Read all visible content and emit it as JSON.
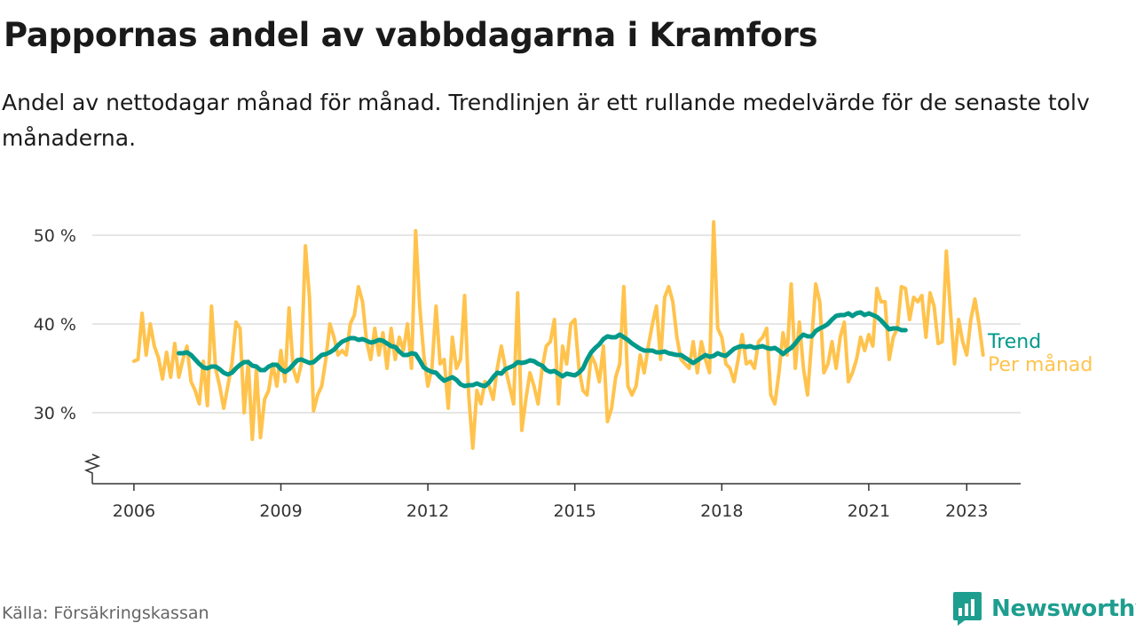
{
  "header": {
    "title": "Pappornas andel av vabbdagarna i Kramfors",
    "subtitle": "Andel av nettodagar månad för månad. Trendlinjen är ett rullande medelvärde för de senaste tolv månaderna."
  },
  "footer": {
    "source": "Källa: Försäkringskassan",
    "brand": "Newsworthy"
  },
  "colors": {
    "monthly": "#ffc34d",
    "trend": "#00998a",
    "grid": "#dddddd",
    "axis": "#333333",
    "brand": "#1e9e8f"
  },
  "icons": {
    "brand": "bar-chart-bubble-icon",
    "axis_break": "zigzag-axis-break-icon"
  },
  "chart_data": {
    "type": "line",
    "x_unit": "year (decimal)",
    "y_unit": "%",
    "ylim": [
      22,
      51
    ],
    "xlim": [
      2005.15,
      2024.1
    ],
    "y_ticks": [
      {
        "value": 30,
        "label": "30 %"
      },
      {
        "value": 40,
        "label": "40 %"
      },
      {
        "value": 50,
        "label": "50 %"
      }
    ],
    "x_ticks": [
      {
        "value": 2006,
        "label": "2006"
      },
      {
        "value": 2009,
        "label": "2009"
      },
      {
        "value": 2012,
        "label": "2012"
      },
      {
        "value": 2015,
        "label": "2015"
      },
      {
        "value": 2018,
        "label": "2018"
      },
      {
        "value": 2021,
        "label": "2021"
      },
      {
        "value": 2023,
        "label": "2023"
      }
    ],
    "grid": "horizontal",
    "legend": "right-end labels",
    "series": [
      {
        "name": "Per månad",
        "color_key": "monthly",
        "start_year": 2006.0,
        "values": [
          35.8,
          36.0,
          41.2,
          36.5,
          40.0,
          37.5,
          36.2,
          33.8,
          36.8,
          34.0,
          37.8,
          34.0,
          36.0,
          37.5,
          33.5,
          32.5,
          31.0,
          35.8,
          30.8,
          42.0,
          35.0,
          33.0,
          30.5,
          33.0,
          35.5,
          40.2,
          39.5,
          30.0,
          35.8,
          27.0,
          35.0,
          27.2,
          31.5,
          32.5,
          35.5,
          33.0,
          37.0,
          33.5,
          41.8,
          35.0,
          33.5,
          35.5,
          48.8,
          43.0,
          30.2,
          32.0,
          33.0,
          36.0,
          40.0,
          38.5,
          36.5,
          37.0,
          36.5,
          40.0,
          41.0,
          44.2,
          42.5,
          38.0,
          36.0,
          39.5,
          36.5,
          39.0,
          35.0,
          39.5,
          36.0,
          38.5,
          37.0,
          40.0,
          35.0,
          50.5,
          42.0,
          36.5,
          33.0,
          35.0,
          42.0,
          35.5,
          36.0,
          30.5,
          38.5,
          35.0,
          36.0,
          43.2,
          32.0,
          26.0,
          32.5,
          31.0,
          33.5,
          33.0,
          31.5,
          35.0,
          37.5,
          35.0,
          33.0,
          31.0,
          43.5,
          28.0,
          31.5,
          34.5,
          33.0,
          31.0,
          35.0,
          37.5,
          38.0,
          40.5,
          31.0,
          37.5,
          35.5,
          40.0,
          40.5,
          35.0,
          32.5,
          32.0,
          36.5,
          35.5,
          33.5,
          37.5,
          29.0,
          30.5,
          34.0,
          35.5,
          44.2,
          33.0,
          32.0,
          33.0,
          36.5,
          34.5,
          37.5,
          40.0,
          42.0,
          36.0,
          43.0,
          44.2,
          42.5,
          38.5,
          36.0,
          35.5,
          35.0,
          38.0,
          34.5,
          38.0,
          36.0,
          34.5,
          51.5,
          39.5,
          38.5,
          35.5,
          35.0,
          33.5,
          36.0,
          38.8,
          35.5,
          35.8,
          35.0,
          38.0,
          38.5,
          39.5,
          32.0,
          31.0,
          34.5,
          39.0,
          36.5,
          44.5,
          35.0,
          40.2,
          35.0,
          32.0,
          38.0,
          44.5,
          42.5,
          34.5,
          35.5,
          38.0,
          35.0,
          38.5,
          40.2,
          33.5,
          34.5,
          36.0,
          38.5,
          37.0,
          38.8,
          37.5,
          44.0,
          42.5,
          42.5,
          36.0,
          38.5,
          39.5,
          44.2,
          44.0,
          40.5,
          43.0,
          42.5,
          43.2,
          38.5,
          43.5,
          42.0,
          37.8,
          38.0,
          48.2,
          41.5,
          35.5,
          40.5,
          38.0,
          36.5,
          40.5,
          42.8,
          40.0,
          36.5
        ]
      },
      {
        "name": "Trend",
        "color_key": "trend",
        "start_year": 2006.917,
        "values": [
          36.7,
          36.7,
          36.8,
          36.5,
          36.0,
          35.5,
          35.1,
          35.0,
          35.2,
          35.2,
          34.9,
          34.5,
          34.3,
          34.5,
          35.0,
          35.4,
          35.7,
          35.7,
          35.3,
          35.2,
          34.8,
          34.8,
          35.2,
          35.4,
          35.4,
          34.9,
          34.6,
          34.9,
          35.4,
          35.9,
          36.0,
          35.8,
          35.6,
          35.7,
          36.1,
          36.5,
          36.6,
          36.8,
          37.1,
          37.6,
          38.0,
          38.2,
          38.4,
          38.4,
          38.2,
          38.3,
          38.1,
          37.9,
          38.0,
          38.2,
          38.1,
          37.8,
          37.5,
          37.4,
          36.9,
          36.5,
          36.5,
          36.7,
          36.6,
          35.9,
          35.1,
          34.8,
          34.6,
          34.5,
          34.0,
          33.6,
          33.8,
          34.0,
          33.7,
          33.2,
          33.0,
          33.1,
          33.1,
          33.3,
          33.1,
          33.0,
          33.4,
          34.0,
          34.5,
          34.4,
          34.9,
          35.1,
          35.3,
          35.7,
          35.6,
          35.7,
          35.9,
          35.8,
          35.5,
          35.3,
          34.8,
          34.6,
          34.7,
          34.4,
          34.1,
          34.4,
          34.3,
          34.2,
          34.5,
          35.0,
          36.0,
          36.8,
          37.3,
          37.7,
          38.3,
          38.6,
          38.5,
          38.5,
          38.8,
          38.5,
          38.2,
          37.8,
          37.5,
          37.2,
          37.0,
          37.0,
          37.0,
          36.8,
          36.8,
          36.9,
          36.7,
          36.6,
          36.5,
          36.5,
          36.2,
          35.9,
          35.6,
          35.9,
          36.2,
          36.5,
          36.3,
          36.4,
          36.7,
          36.5,
          36.4,
          36.8,
          37.2,
          37.4,
          37.5,
          37.4,
          37.5,
          37.3,
          37.4,
          37.5,
          37.3,
          37.2,
          37.3,
          37.0,
          36.6,
          37.0,
          37.3,
          37.8,
          38.4,
          38.8,
          38.6,
          38.6,
          39.2,
          39.5,
          39.7,
          40.0,
          40.5,
          40.9,
          41.0,
          41.0,
          41.2,
          40.9,
          41.2,
          41.3,
          41.0,
          41.2,
          41.0,
          40.8,
          40.4,
          39.9,
          39.4,
          39.5,
          39.5,
          39.3,
          39.3
        ]
      }
    ]
  }
}
